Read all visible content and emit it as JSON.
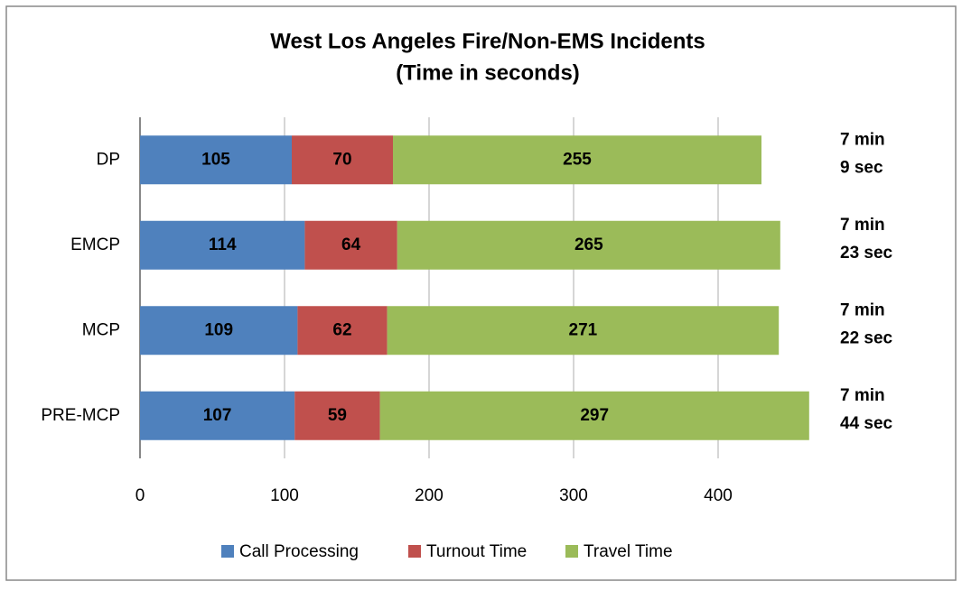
{
  "chart_data": {
    "type": "stacked_barh",
    "title": [
      "West Los Angeles Fire/Non-EMS Incidents",
      "(Time in seconds)"
    ],
    "categories": [
      "DP",
      "EMCP",
      "MCP",
      "PRE-MCP"
    ],
    "series": [
      {
        "name": "Call Processing",
        "color": "#4f81bd",
        "values": [
          105,
          114,
          109,
          107
        ]
      },
      {
        "name": "Turnout Time",
        "color": "#c0504d",
        "values": [
          70,
          64,
          62,
          59
        ]
      },
      {
        "name": "Travel Time",
        "color": "#9bbb59",
        "values": [
          255,
          265,
          271,
          297
        ]
      }
    ],
    "total_labels": [
      [
        "7 min",
        "9 sec"
      ],
      [
        "7 min",
        "23 sec"
      ],
      [
        "7 min",
        "22 sec"
      ],
      [
        "7 min",
        "44 sec"
      ]
    ],
    "xlim": [
      0,
      480
    ],
    "xticks": [
      0,
      100,
      200,
      300,
      400
    ],
    "grid": true,
    "legend": "bottom"
  }
}
